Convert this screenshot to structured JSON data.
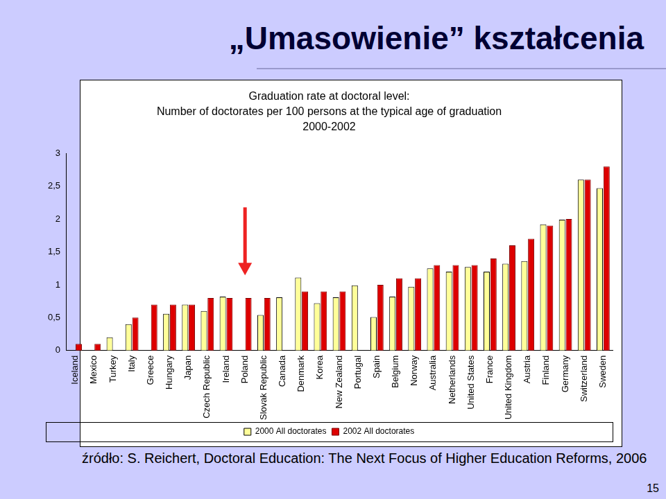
{
  "slide_title": "„Umasowienie” kształcenia",
  "source": "źródło: S. Reichert, Doctoral Education: The Next Focus of Higher Education Reforms, 2006",
  "page_number": 15,
  "chart_data": {
    "type": "bar",
    "title": [
      "Graduation rate at doctoral level:",
      "Number of doctorates per 100 persons at the typical age of graduation",
      "2000-2002"
    ],
    "categories": [
      "Iceland",
      "Mexico",
      "Turkey",
      "Italy",
      "Greece",
      "Hungary",
      "Japan",
      "Czech Republic",
      "Ireland",
      "Poland",
      "Slovak Republic",
      "Canada",
      "Denmark",
      "Korea",
      "New Zealand",
      "Portugal",
      "Spain",
      "Belgium",
      "Norway",
      "Australia",
      "Netherlands",
      "United States",
      "France",
      "United Kingdom",
      "Austria",
      "Finland",
      "Germany",
      "Switzerland",
      "Sweden"
    ],
    "series": [
      {
        "name": "2000 All doctorates",
        "color": "#ffff99",
        "values": [
          null,
          null,
          0.2,
          0.4,
          null,
          0.56,
          0.7,
          0.6,
          0.82,
          null,
          0.54,
          0.81,
          1.11,
          0.72,
          0.81,
          0.99,
          0.51,
          0.82,
          0.97,
          1.25,
          1.2,
          1.27,
          1.2,
          1.32,
          1.36,
          1.92,
          1.99,
          2.6,
          2.47
        ]
      },
      {
        "name": "2002 All doctorates",
        "color": "#dd0000",
        "values": [
          0.1,
          0.1,
          null,
          0.5,
          0.7,
          0.7,
          0.7,
          0.8,
          0.8,
          0.8,
          0.8,
          null,
          0.9,
          0.9,
          0.9,
          null,
          1.0,
          1.1,
          1.1,
          1.3,
          1.3,
          1.3,
          1.4,
          1.6,
          1.7,
          1.9,
          2.0,
          2.6,
          2.8
        ]
      }
    ],
    "ylim": [
      0,
      3
    ],
    "yticks": [
      0,
      {
        "value": 0.5,
        "label": "0,5"
      },
      1,
      {
        "value": 1.5,
        "label": "1,5"
      },
      2,
      {
        "value": 2.5,
        "label": "2,5"
      },
      3
    ],
    "grid": false,
    "legend": "bottom"
  }
}
